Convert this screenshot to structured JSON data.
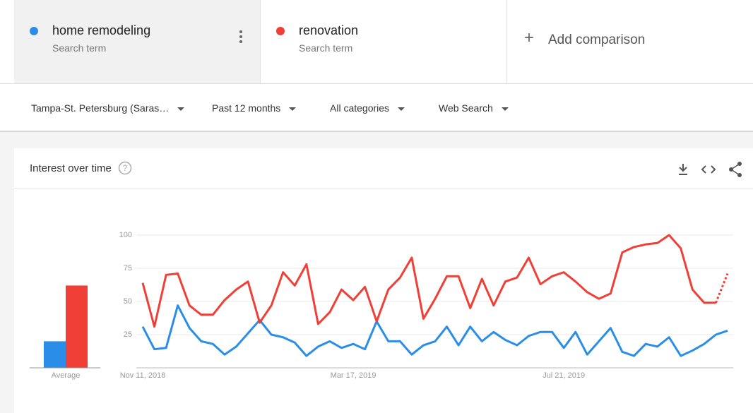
{
  "header": {
    "terms": [
      {
        "subtitle": "Search term"
      },
      {
        "subtitle": "Search term"
      }
    ],
    "add_comparison": "Add comparison"
  },
  "filters": [
    "Tampa-St. Petersburg (Saras…",
    "Past 12 months",
    "All categories",
    "Web Search"
  ],
  "card": {
    "title": "Interest over time"
  },
  "chart_data": [
    {
      "type": "line",
      "categories": [
        "Nov 11, 2018",
        null,
        null,
        null,
        null,
        null,
        null,
        null,
        null,
        null,
        null,
        null,
        null,
        null,
        null,
        null,
        null,
        null,
        "Mar 17, 2019",
        null,
        null,
        null,
        null,
        null,
        null,
        null,
        null,
        null,
        null,
        null,
        null,
        null,
        null,
        null,
        null,
        null,
        "Jul 21, 2019",
        null,
        null,
        null,
        null,
        null,
        null,
        null,
        null,
        null,
        null,
        null,
        null,
        null,
        null
      ],
      "series": [
        {
          "name": "home remodeling",
          "color": "#2a8ee8",
          "values": [
            31,
            14,
            15,
            47,
            30,
            20,
            18,
            10,
            16,
            26,
            36,
            25,
            23,
            19,
            9,
            16,
            20,
            15,
            18,
            14,
            35,
            20,
            20,
            10,
            17,
            20,
            31,
            17,
            31,
            20,
            27,
            21,
            17,
            24,
            27,
            27,
            15,
            27,
            10,
            20,
            30,
            12,
            9,
            18,
            16,
            23,
            9,
            13,
            18,
            25,
            28
          ]
        },
        {
          "name": "renovation",
          "color": "#ef3f36",
          "dashed_last": true,
          "values": [
            64,
            31,
            70,
            71,
            47,
            40,
            40,
            51,
            59,
            65,
            34,
            47,
            72,
            62,
            78,
            33,
            42,
            59,
            51,
            61,
            35,
            59,
            68,
            83,
            37,
            52,
            69,
            69,
            45,
            67,
            47,
            65,
            68,
            83,
            63,
            69,
            72,
            65,
            57,
            52,
            56,
            87,
            91,
            93,
            94,
            100,
            90,
            59,
            49,
            49,
            71
          ]
        }
      ],
      "ylim": [
        0,
        100
      ],
      "yticks": [
        25,
        50,
        75,
        100
      ],
      "grid": true
    },
    {
      "type": "bar",
      "categories": [
        "Average"
      ],
      "series": [
        {
          "color": "#2a8ee8",
          "values": [
            20
          ]
        },
        {
          "color": "#ef3f36",
          "values": [
            62
          ]
        }
      ],
      "ylim": [
        0,
        100
      ]
    }
  ]
}
